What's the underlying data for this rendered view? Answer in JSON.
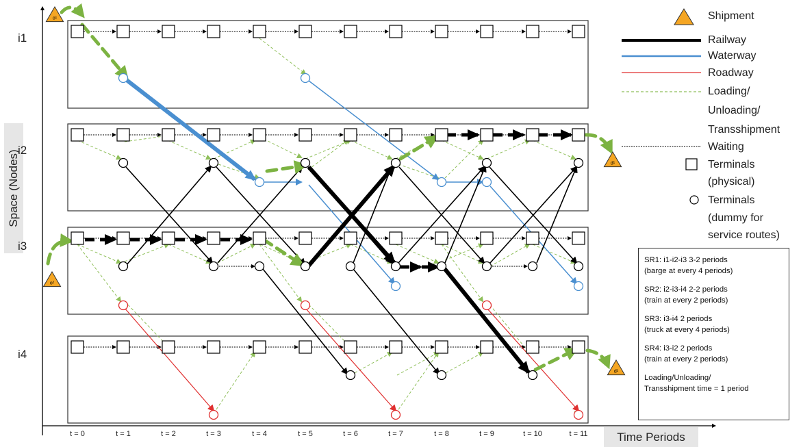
{
  "axes": {
    "y_label": "Space (Nodes)",
    "x_label": "Time Periods",
    "rows": [
      "i1",
      "i2",
      "i3",
      "i4"
    ],
    "time_labels": [
      "t = 0",
      "t = 1",
      "t = 2",
      "t = 3",
      "t = 4",
      "t = 5",
      "t = 6",
      "t = 7",
      "t = 8",
      "t = 9",
      "t = 10",
      "t = 11"
    ]
  },
  "shipments": {
    "origin_1": "o¹",
    "origin_2": "o²",
    "dest_1": "d¹",
    "dest_2": "d²"
  },
  "legend": {
    "shipment": "Shipment",
    "railway": "Railway",
    "waterway": "Waterway",
    "roadway": "Roadway",
    "loading_1": "Loading/",
    "loading_2": "Unloading/",
    "loading_3": "Transshipment",
    "waiting": "Waiting",
    "terminals_phys_1": "Terminals",
    "terminals_phys_2": "(physical)",
    "terminals_dummy_1": "Terminals",
    "terminals_dummy_2": "(dummy for",
    "terminals_dummy_3": "service routes)"
  },
  "service_routes": {
    "sr1": [
      "SR1: i1-i2-i3 3-2 periods",
      "(barge at every 4 periods)"
    ],
    "sr2": [
      "SR2: i2-i3-i4 2-2 periods",
      "(train at every 2 periods)"
    ],
    "sr3": [
      "SR3: i3-i4 2 periods",
      "(truck at every 4 periods)"
    ],
    "sr4": [
      "SR4: i3-i2 2 periods",
      "(train at every 2 periods)"
    ],
    "note": [
      "Loading/Unloading/",
      "Transshipment time = 1 period"
    ]
  },
  "colors": {
    "railway": "#000000",
    "waterway": "#4a8fd0",
    "roadway": "#e03030",
    "loading": "#8fbf5a",
    "shipment_path": "#7cb342",
    "shipment_fill": "#f5a623"
  }
}
